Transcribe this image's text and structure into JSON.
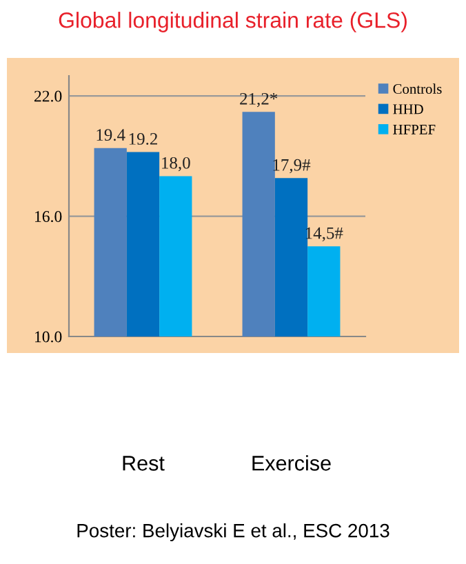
{
  "chart_data": {
    "type": "bar",
    "title": "Global longitudinal strain rate (GLS)",
    "categories": [
      "Rest",
      "Exercise"
    ],
    "series": [
      {
        "name": "Controls",
        "color": "#4f81bd",
        "values": [
          19.4,
          21.2
        ],
        "value_labels": [
          "19.4",
          "21,2*"
        ]
      },
      {
        "name": "HHD",
        "color": "#0070c0",
        "values": [
          19.2,
          17.9
        ],
        "value_labels": [
          "19.2",
          "17,9#"
        ]
      },
      {
        "name": "HFPEF",
        "color": "#00b0f0",
        "values": [
          18.0,
          14.5
        ],
        "value_labels": [
          "18,0",
          "14,5#"
        ]
      }
    ],
    "ylim": [
      10,
      23
    ],
    "yticks": [
      {
        "value": 10,
        "label": "10.0"
      },
      {
        "value": 16,
        "label": "16.0"
      },
      {
        "value": 22,
        "label": "22.0"
      }
    ],
    "grid": "y",
    "legend": "top right",
    "annotations": [
      "Poster: Belyiavski E et al., ESC 2013"
    ]
  }
}
